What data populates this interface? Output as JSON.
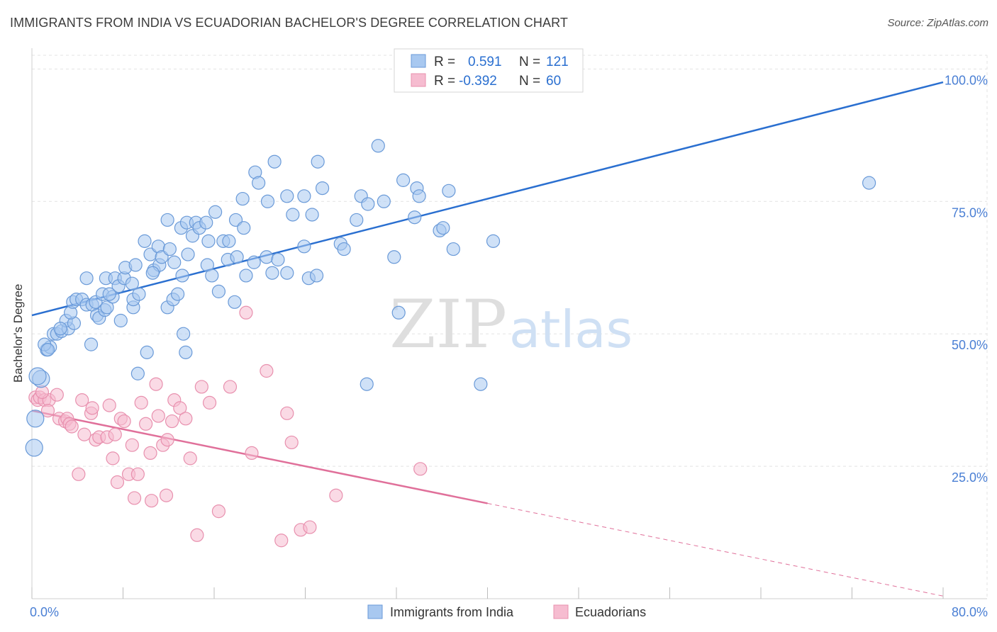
{
  "header": {
    "title": "IMMIGRANTS FROM INDIA VS ECUADORIAN BACHELOR'S DEGREE CORRELATION CHART",
    "source": "Source: ZipAtlas.com"
  },
  "watermark": {
    "part1": "ZIP",
    "part2": "atlas"
  },
  "stats": {
    "india": {
      "r_label": "R =",
      "r_value": "0.591",
      "n_label": "N =",
      "n_value": "121"
    },
    "ecuador": {
      "r_label": "R =",
      "r_value": "-0.392",
      "n_label": "N =",
      "n_value": "60"
    }
  },
  "colors": {
    "india_fill": "#a8c8f0",
    "india_stroke": "#6a9ad8",
    "india_line": "#2a6fd0",
    "ecuador_fill": "#f6bcd0",
    "ecuador_stroke": "#e890ae",
    "ecuador_line": "#e0709a",
    "tick_label": "#4a7fd4",
    "grid": "#e3e3e3"
  },
  "chart_data": {
    "type": "scatter",
    "title": "IMMIGRANTS FROM INDIA VS ECUADORIAN BACHELOR'S DEGREE CORRELATION CHART",
    "xlabel": "",
    "ylabel": "Bachelor's Degree",
    "xlim": [
      0,
      80
    ],
    "ylim": [
      0,
      105
    ],
    "x_tick_labels": [
      "0.0%",
      "80.0%"
    ],
    "y_ticks": [
      25,
      50,
      75,
      100
    ],
    "y_tick_labels": [
      "25.0%",
      "50.0%",
      "75.0%",
      "100.0%"
    ],
    "grid": true,
    "legend_position": "bottom-center",
    "series": [
      {
        "name": "Immigrants from India",
        "r": 0.591,
        "n": 121,
        "trend": {
          "x": [
            0,
            80
          ],
          "y": [
            53.5,
            97.5
          ],
          "dashed_from": null
        },
        "points": [
          [
            0.3,
            34.0
          ],
          [
            0.2,
            28.5
          ],
          [
            0.8,
            41.5
          ],
          [
            0.5,
            42.0
          ],
          [
            1.3,
            47.0
          ],
          [
            1.6,
            47.5
          ],
          [
            1.9,
            50.0
          ],
          [
            2.2,
            50.0
          ],
          [
            2.6,
            50.5
          ],
          [
            3.2,
            51.0
          ],
          [
            3.0,
            52.5
          ],
          [
            3.7,
            52.0
          ],
          [
            3.4,
            54.0
          ],
          [
            3.6,
            56.0
          ],
          [
            3.9,
            56.5
          ],
          [
            4.4,
            56.5
          ],
          [
            4.8,
            55.5
          ],
          [
            5.3,
            55.5
          ],
          [
            5.6,
            56.0
          ],
          [
            5.7,
            53.5
          ],
          [
            5.9,
            53.0
          ],
          [
            6.4,
            54.5
          ],
          [
            6.6,
            55.0
          ],
          [
            6.2,
            57.5
          ],
          [
            7.1,
            57.0
          ],
          [
            7.8,
            52.5
          ],
          [
            4.8,
            60.5
          ],
          [
            6.5,
            60.5
          ],
          [
            7.3,
            60.5
          ],
          [
            7.6,
            59.0
          ],
          [
            8.1,
            60.5
          ],
          [
            8.2,
            62.5
          ],
          [
            8.9,
            55.0
          ],
          [
            8.9,
            56.5
          ],
          [
            9.4,
            57.5
          ],
          [
            9.1,
            63.0
          ],
          [
            9.9,
            67.5
          ],
          [
            10.4,
            65.0
          ],
          [
            10.7,
            62.0
          ],
          [
            11.2,
            63.0
          ],
          [
            11.1,
            66.5
          ],
          [
            11.4,
            64.5
          ],
          [
            11.9,
            55.0
          ],
          [
            12.4,
            56.5
          ],
          [
            12.8,
            57.5
          ],
          [
            12.1,
            66.0
          ],
          [
            11.9,
            71.5
          ],
          [
            13.2,
            61.0
          ],
          [
            13.1,
            70.0
          ],
          [
            13.7,
            65.0
          ],
          [
            13.6,
            71.0
          ],
          [
            14.1,
            68.5
          ],
          [
            14.4,
            71.0
          ],
          [
            14.7,
            70.0
          ],
          [
            15.3,
            71.0
          ],
          [
            15.5,
            67.5
          ],
          [
            15.4,
            63.0
          ],
          [
            15.8,
            61.0
          ],
          [
            16.1,
            73.0
          ],
          [
            16.4,
            58.0
          ],
          [
            16.8,
            67.5
          ],
          [
            17.2,
            64.0
          ],
          [
            17.3,
            67.5
          ],
          [
            17.8,
            56.0
          ],
          [
            17.9,
            71.5
          ],
          [
            18.6,
            70.0
          ],
          [
            18.0,
            64.5
          ],
          [
            18.5,
            75.5
          ],
          [
            18.8,
            61.0
          ],
          [
            19.5,
            63.5
          ],
          [
            19.6,
            80.5
          ],
          [
            19.9,
            78.5
          ],
          [
            20.7,
            75.0
          ],
          [
            20.6,
            64.5
          ],
          [
            21.1,
            61.5
          ],
          [
            21.3,
            82.5
          ],
          [
            21.6,
            64.0
          ],
          [
            22.4,
            61.5
          ],
          [
            22.4,
            76.0
          ],
          [
            22.9,
            72.5
          ],
          [
            23.9,
            66.5
          ],
          [
            23.9,
            76.0
          ],
          [
            24.3,
            60.5
          ],
          [
            24.6,
            72.5
          ],
          [
            25.0,
            61.0
          ],
          [
            25.1,
            82.5
          ],
          [
            25.5,
            77.5
          ],
          [
            27.1,
            67.0
          ],
          [
            27.4,
            66.0
          ],
          [
            28.5,
            71.5
          ],
          [
            28.9,
            76.0
          ],
          [
            29.5,
            74.5
          ],
          [
            30.4,
            85.5
          ],
          [
            30.9,
            75.0
          ],
          [
            31.8,
            64.5
          ],
          [
            32.6,
            79.0
          ],
          [
            33.6,
            72.0
          ],
          [
            33.8,
            77.5
          ],
          [
            34.0,
            76.0
          ],
          [
            35.8,
            69.5
          ],
          [
            36.1,
            70.0
          ],
          [
            36.6,
            77.0
          ],
          [
            37.0,
            66.0
          ],
          [
            40.5,
            67.5
          ],
          [
            32.2,
            54.0
          ],
          [
            10.1,
            46.5
          ],
          [
            13.5,
            46.5
          ],
          [
            13.3,
            50.0
          ],
          [
            9.3,
            42.5
          ],
          [
            29.4,
            40.5
          ],
          [
            39.4,
            40.5
          ],
          [
            1.1,
            48.0
          ],
          [
            1.4,
            47.0
          ],
          [
            2.5,
            51.0
          ],
          [
            5.2,
            48.0
          ],
          [
            6.8,
            57.5
          ],
          [
            8.8,
            59.5
          ],
          [
            10.6,
            61.5
          ],
          [
            12.5,
            63.5
          ],
          [
            73.5,
            78.5
          ]
        ]
      },
      {
        "name": "Ecuadorians",
        "r": -0.392,
        "n": 60,
        "trend": {
          "x": [
            0,
            80
          ],
          "y": [
            35.5,
            0.5
          ],
          "solid_until_x": 40
        },
        "points": [
          [
            0.3,
            38.0
          ],
          [
            0.5,
            37.5
          ],
          [
            0.7,
            38.0
          ],
          [
            1.1,
            37.5
          ],
          [
            1.5,
            37.5
          ],
          [
            0.9,
            39.0
          ],
          [
            1.4,
            35.5
          ],
          [
            2.2,
            38.5
          ],
          [
            2.4,
            34.0
          ],
          [
            2.9,
            33.5
          ],
          [
            3.1,
            34.0
          ],
          [
            3.3,
            33.0
          ],
          [
            3.5,
            32.5
          ],
          [
            4.4,
            37.5
          ],
          [
            4.6,
            31.0
          ],
          [
            5.2,
            35.0
          ],
          [
            5.3,
            36.0
          ],
          [
            5.6,
            30.0
          ],
          [
            5.9,
            30.5
          ],
          [
            6.6,
            30.5
          ],
          [
            6.8,
            36.5
          ],
          [
            7.1,
            26.5
          ],
          [
            7.3,
            31.0
          ],
          [
            7.5,
            22.0
          ],
          [
            7.8,
            34.0
          ],
          [
            8.1,
            33.5
          ],
          [
            8.5,
            23.5
          ],
          [
            8.8,
            29.0
          ],
          [
            9.0,
            19.0
          ],
          [
            9.3,
            23.5
          ],
          [
            9.6,
            37.0
          ],
          [
            10.0,
            33.0
          ],
          [
            10.4,
            27.5
          ],
          [
            10.5,
            18.5
          ],
          [
            10.9,
            40.5
          ],
          [
            11.1,
            34.5
          ],
          [
            11.5,
            29.0
          ],
          [
            11.8,
            19.5
          ],
          [
            11.9,
            30.0
          ],
          [
            12.3,
            33.5
          ],
          [
            12.5,
            37.5
          ],
          [
            13.0,
            36.0
          ],
          [
            13.5,
            34.0
          ],
          [
            13.9,
            26.5
          ],
          [
            14.5,
            12.0
          ],
          [
            14.9,
            40.0
          ],
          [
            15.6,
            37.0
          ],
          [
            16.4,
            16.5
          ],
          [
            17.4,
            40.0
          ],
          [
            18.8,
            54.0
          ],
          [
            19.3,
            27.5
          ],
          [
            20.6,
            43.0
          ],
          [
            21.9,
            11.0
          ],
          [
            22.4,
            35.0
          ],
          [
            22.8,
            29.5
          ],
          [
            23.6,
            13.0
          ],
          [
            24.4,
            13.5
          ],
          [
            26.7,
            19.5
          ],
          [
            34.1,
            24.5
          ],
          [
            4.1,
            23.5
          ]
        ]
      }
    ]
  },
  "legend": {
    "india_label": "Immigrants from India",
    "ecuador_label": "Ecuadorians"
  }
}
